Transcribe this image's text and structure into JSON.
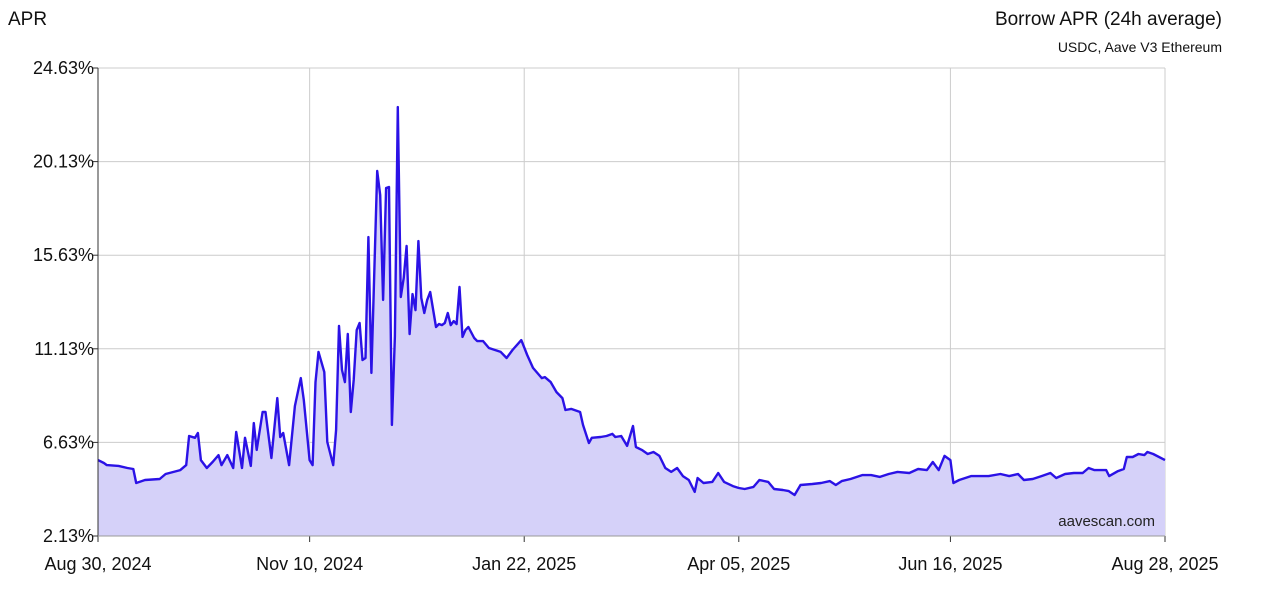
{
  "chart_data": {
    "type": "area",
    "title": "Borrow APR (24h average)",
    "subtitle": "USDC, Aave V3 Ethereum",
    "ylabel": "APR",
    "xlabel": "",
    "watermark": "aavescan.com",
    "ylim": [
      2.13,
      24.63
    ],
    "xlim": [
      "2024-08-30",
      "2025-08-28"
    ],
    "y_ticks": [
      "2.13%",
      "6.63%",
      "11.13%",
      "15.63%",
      "20.13%",
      "24.63%"
    ],
    "y_tick_values": [
      2.13,
      6.63,
      11.13,
      15.63,
      20.13,
      24.63
    ],
    "x_ticks": [
      "Aug 30, 2024",
      "Nov 10, 2024",
      "Jan 22, 2025",
      "Apr 05, 2025",
      "Jun 16, 2025",
      "Aug 28, 2025"
    ],
    "x_tick_dates": [
      "2024-08-30",
      "2024-11-10",
      "2025-01-22",
      "2025-04-05",
      "2025-06-16",
      "2025-08-28"
    ],
    "grid": true,
    "colors": {
      "line": "#2b12e6",
      "fill": "#d5d1f9",
      "grid": "#cccccc"
    },
    "points": [
      [
        "2024-08-30",
        5.78
      ],
      [
        "2024-09-01",
        5.64
      ],
      [
        "2024-09-02",
        5.54
      ],
      [
        "2024-09-06",
        5.5
      ],
      [
        "2024-09-09",
        5.4
      ],
      [
        "2024-09-11",
        5.35
      ],
      [
        "2024-09-12",
        4.68
      ],
      [
        "2024-09-15",
        4.82
      ],
      [
        "2024-09-20",
        4.87
      ],
      [
        "2024-09-22",
        5.11
      ],
      [
        "2024-09-27",
        5.3
      ],
      [
        "2024-09-29",
        5.54
      ],
      [
        "2024-09-30",
        6.94
      ],
      [
        "2024-10-02",
        6.85
      ],
      [
        "2024-10-03",
        7.08
      ],
      [
        "2024-10-04",
        5.78
      ],
      [
        "2024-10-06",
        5.4
      ],
      [
        "2024-10-08",
        5.69
      ],
      [
        "2024-10-10",
        6.02
      ],
      [
        "2024-10-11",
        5.54
      ],
      [
        "2024-10-13",
        6.02
      ],
      [
        "2024-10-15",
        5.4
      ],
      [
        "2024-10-16",
        7.13
      ],
      [
        "2024-10-18",
        5.4
      ],
      [
        "2024-10-19",
        6.85
      ],
      [
        "2024-10-21",
        5.5
      ],
      [
        "2024-10-22",
        7.56
      ],
      [
        "2024-10-23",
        6.27
      ],
      [
        "2024-10-25",
        8.09
      ],
      [
        "2024-10-26",
        8.09
      ],
      [
        "2024-10-28",
        5.88
      ],
      [
        "2024-10-30",
        8.76
      ],
      [
        "2024-10-31",
        6.89
      ],
      [
        "2024-11-01",
        7.08
      ],
      [
        "2024-11-03",
        5.54
      ],
      [
        "2024-11-05",
        8.38
      ],
      [
        "2024-11-07",
        9.72
      ],
      [
        "2024-11-08",
        8.67
      ],
      [
        "2024-11-10",
        5.78
      ],
      [
        "2024-11-11",
        5.54
      ],
      [
        "2024-11-12",
        9.53
      ],
      [
        "2024-11-13",
        10.98
      ],
      [
        "2024-11-15",
        10.01
      ],
      [
        "2024-11-16",
        6.65
      ],
      [
        "2024-11-18",
        5.54
      ],
      [
        "2024-11-19",
        7.23
      ],
      [
        "2024-11-20",
        12.23
      ],
      [
        "2024-11-21",
        10.11
      ],
      [
        "2024-11-22",
        9.53
      ],
      [
        "2024-11-23",
        11.84
      ],
      [
        "2024-11-24",
        8.09
      ],
      [
        "2024-11-25",
        9.63
      ],
      [
        "2024-11-26",
        12.03
      ],
      [
        "2024-11-27",
        12.37
      ],
      [
        "2024-11-28",
        10.59
      ],
      [
        "2024-11-29",
        10.69
      ],
      [
        "2024-11-30",
        16.5
      ],
      [
        "2024-12-01",
        9.97
      ],
      [
        "2024-12-03",
        19.68
      ],
      [
        "2024-12-04",
        18.52
      ],
      [
        "2024-12-05",
        13.48
      ],
      [
        "2024-12-06",
        18.86
      ],
      [
        "2024-12-07",
        18.91
      ],
      [
        "2024-12-08",
        7.47
      ],
      [
        "2024-12-09",
        11.74
      ],
      [
        "2024-12-10",
        22.75
      ],
      [
        "2024-12-11",
        13.62
      ],
      [
        "2024-12-12",
        14.53
      ],
      [
        "2024-12-13",
        16.07
      ],
      [
        "2024-12-14",
        11.84
      ],
      [
        "2024-12-15",
        13.76
      ],
      [
        "2024-12-16",
        12.99
      ],
      [
        "2024-12-17",
        16.31
      ],
      [
        "2024-12-18",
        13.57
      ],
      [
        "2024-12-19",
        12.85
      ],
      [
        "2024-12-20",
        13.48
      ],
      [
        "2024-12-21",
        13.86
      ],
      [
        "2024-12-23",
        12.18
      ],
      [
        "2024-12-24",
        12.32
      ],
      [
        "2024-12-25",
        12.27
      ],
      [
        "2024-12-26",
        12.37
      ],
      [
        "2024-12-27",
        12.85
      ],
      [
        "2024-12-28",
        12.27
      ],
      [
        "2024-12-29",
        12.46
      ],
      [
        "2024-12-30",
        12.32
      ],
      [
        "2024-12-31",
        14.1
      ],
      [
        "2025-01-01",
        11.7
      ],
      [
        "2025-01-02",
        12.03
      ],
      [
        "2025-01-03",
        12.18
      ],
      [
        "2025-01-05",
        11.65
      ],
      [
        "2025-01-06",
        11.5
      ],
      [
        "2025-01-08",
        11.5
      ],
      [
        "2025-01-10",
        11.17
      ],
      [
        "2025-01-14",
        10.98
      ],
      [
        "2025-01-16",
        10.69
      ],
      [
        "2025-01-18",
        11.07
      ],
      [
        "2025-01-21",
        11.55
      ],
      [
        "2025-01-23",
        10.83
      ],
      [
        "2025-01-25",
        10.21
      ],
      [
        "2025-01-28",
        9.72
      ],
      [
        "2025-01-29",
        9.77
      ],
      [
        "2025-01-31",
        9.53
      ],
      [
        "2025-02-02",
        9.05
      ],
      [
        "2025-02-04",
        8.76
      ],
      [
        "2025-02-05",
        8.19
      ],
      [
        "2025-02-07",
        8.24
      ],
      [
        "2025-02-10",
        8.09
      ],
      [
        "2025-02-11",
        7.47
      ],
      [
        "2025-02-13",
        6.6
      ],
      [
        "2025-02-14",
        6.85
      ],
      [
        "2025-02-17",
        6.89
      ],
      [
        "2025-02-19",
        6.94
      ],
      [
        "2025-02-21",
        7.04
      ],
      [
        "2025-02-22",
        6.89
      ],
      [
        "2025-02-24",
        6.94
      ],
      [
        "2025-02-26",
        6.46
      ],
      [
        "2025-02-28",
        7.42
      ],
      [
        "2025-03-01",
        6.41
      ],
      [
        "2025-03-03",
        6.27
      ],
      [
        "2025-03-05",
        6.07
      ],
      [
        "2025-03-07",
        6.17
      ],
      [
        "2025-03-09",
        5.98
      ],
      [
        "2025-03-11",
        5.4
      ],
      [
        "2025-03-13",
        5.21
      ],
      [
        "2025-03-15",
        5.4
      ],
      [
        "2025-03-17",
        5.01
      ],
      [
        "2025-03-19",
        4.82
      ],
      [
        "2025-03-21",
        4.25
      ],
      [
        "2025-03-22",
        4.92
      ],
      [
        "2025-03-24",
        4.68
      ],
      [
        "2025-03-27",
        4.73
      ],
      [
        "2025-03-29",
        5.16
      ],
      [
        "2025-03-31",
        4.73
      ],
      [
        "2025-04-03",
        4.53
      ],
      [
        "2025-04-05",
        4.44
      ],
      [
        "2025-04-07",
        4.39
      ],
      [
        "2025-04-10",
        4.49
      ],
      [
        "2025-04-12",
        4.82
      ],
      [
        "2025-04-15",
        4.73
      ],
      [
        "2025-04-17",
        4.39
      ],
      [
        "2025-04-20",
        4.34
      ],
      [
        "2025-04-22",
        4.29
      ],
      [
        "2025-04-24",
        4.1
      ],
      [
        "2025-04-26",
        4.58
      ],
      [
        "2025-04-30",
        4.63
      ],
      [
        "2025-05-03",
        4.68
      ],
      [
        "2025-05-06",
        4.77
      ],
      [
        "2025-05-08",
        4.58
      ],
      [
        "2025-05-10",
        4.77
      ],
      [
        "2025-05-13",
        4.87
      ],
      [
        "2025-05-17",
        5.06
      ],
      [
        "2025-05-20",
        5.06
      ],
      [
        "2025-05-23",
        4.97
      ],
      [
        "2025-05-26",
        5.11
      ],
      [
        "2025-05-29",
        5.21
      ],
      [
        "2025-06-02",
        5.16
      ],
      [
        "2025-06-05",
        5.35
      ],
      [
        "2025-06-08",
        5.3
      ],
      [
        "2025-06-10",
        5.69
      ],
      [
        "2025-06-12",
        5.3
      ],
      [
        "2025-06-14",
        5.98
      ],
      [
        "2025-06-16",
        5.78
      ],
      [
        "2025-06-17",
        4.68
      ],
      [
        "2025-06-19",
        4.82
      ],
      [
        "2025-06-23",
        5.01
      ],
      [
        "2025-06-26",
        5.01
      ],
      [
        "2025-06-29",
        5.01
      ],
      [
        "2025-07-03",
        5.11
      ],
      [
        "2025-07-06",
        5.01
      ],
      [
        "2025-07-09",
        5.11
      ],
      [
        "2025-07-11",
        4.82
      ],
      [
        "2025-07-14",
        4.87
      ],
      [
        "2025-07-17",
        5.01
      ],
      [
        "2025-07-20",
        5.16
      ],
      [
        "2025-07-22",
        4.92
      ],
      [
        "2025-07-25",
        5.11
      ],
      [
        "2025-07-28",
        5.16
      ],
      [
        "2025-07-31",
        5.16
      ],
      [
        "2025-08-02",
        5.4
      ],
      [
        "2025-08-04",
        5.3
      ],
      [
        "2025-08-08",
        5.3
      ],
      [
        "2025-08-09",
        5.01
      ],
      [
        "2025-08-12",
        5.25
      ],
      [
        "2025-08-14",
        5.35
      ],
      [
        "2025-08-15",
        5.93
      ],
      [
        "2025-08-17",
        5.93
      ],
      [
        "2025-08-19",
        6.07
      ],
      [
        "2025-08-21",
        6.02
      ],
      [
        "2025-08-22",
        6.17
      ],
      [
        "2025-08-24",
        6.07
      ],
      [
        "2025-08-28",
        5.78
      ]
    ]
  }
}
